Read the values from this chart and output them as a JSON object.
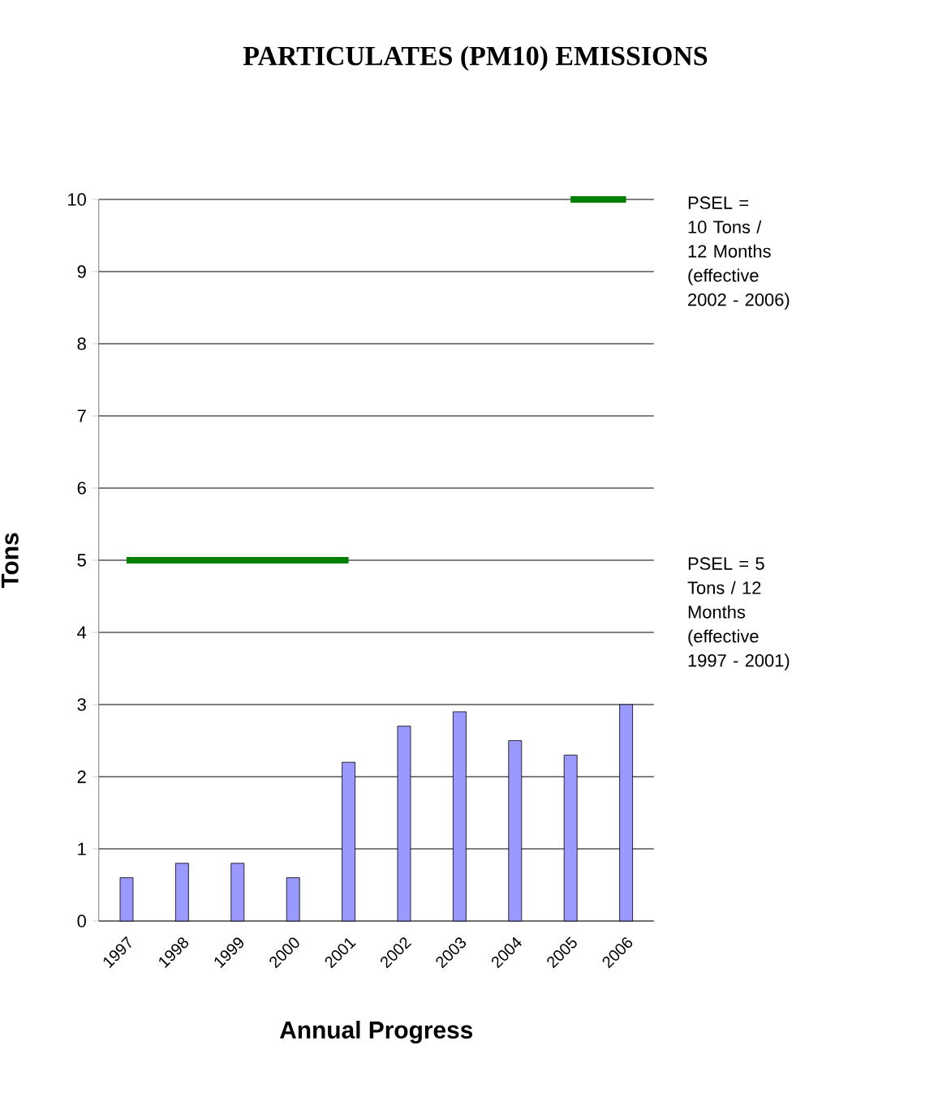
{
  "chart_data": {
    "type": "bar",
    "title": "PARTICULATES (PM10) EMISSIONS",
    "xlabel": "Annual Progress",
    "ylabel": "Tons",
    "categories": [
      "1997",
      "1998",
      "1999",
      "2000",
      "2001",
      "2002",
      "2003",
      "2004",
      "2005",
      "2006"
    ],
    "series": [
      {
        "color": "#9999ff",
        "values": [
          0.6,
          0.8,
          0.8,
          0.6,
          2.2,
          2.7,
          2.9,
          2.5,
          2.3,
          3.0
        ]
      },
      {
        "type": "line",
        "color": "#008000",
        "values": [
          5,
          5,
          5,
          5,
          5,
          null,
          null,
          null,
          null,
          null
        ]
      },
      {
        "type": "line",
        "color": "#008000",
        "values": [
          null,
          null,
          null,
          null,
          null,
          null,
          null,
          null,
          10,
          10
        ]
      }
    ],
    "annotations": [
      "PSEL = 10 Tons / 12 Months (effective 2002 - 2006)",
      "PSEL = 5 Tons / 12 Months (effective 1997 - 2001)"
    ],
    "ylim": [
      0,
      10
    ],
    "yticks": [
      0,
      1,
      2,
      3,
      4,
      5,
      6,
      7,
      8,
      9,
      10
    ],
    "grid": "y",
    "marker": "none",
    "line_style": "solid"
  }
}
